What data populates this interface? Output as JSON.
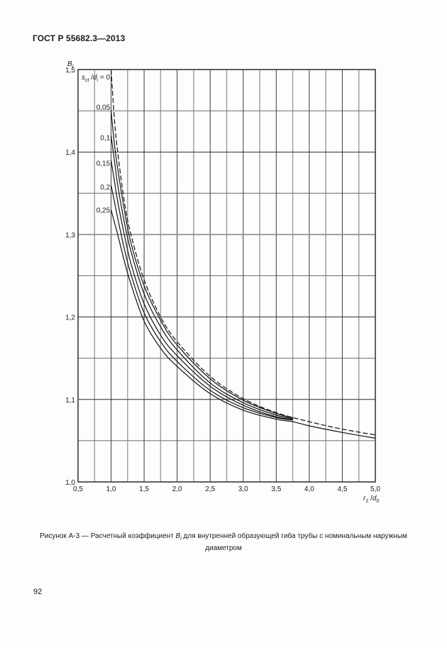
{
  "header": {
    "title": "ГОСТ Р 55682.3—2013"
  },
  "page": {
    "number": "92"
  },
  "caption": {
    "prefix": "Рисунок А-3 — Расчетный коэффициент ",
    "symbol": "B",
    "symbol_sub": "i",
    "suffix": " для внутренней образующей гиба трубы с номинальным наружным",
    "line2": "диаметром"
  },
  "chart_data": {
    "type": "line",
    "title": "",
    "xlabel": "r2/d0",
    "ylabel": "Bi",
    "xlim": [
      0.5,
      5.0
    ],
    "ylim": [
      1.0,
      1.5
    ],
    "x_ticks": [
      "0,5",
      "1,0",
      "1,5",
      "2,0",
      "2,5",
      "3,0",
      "3,5",
      "4,0",
      "4,5",
      "5,0"
    ],
    "y_ticks": [
      "1,0",
      "1,1",
      "1,2",
      "1,3",
      "1,4",
      "1,5"
    ],
    "x_minor_grid": [
      0.75,
      1.25,
      1.75,
      2.25,
      2.75,
      3.25,
      3.75,
      4.25,
      4.75
    ],
    "y_minor_grid": [
      1.05,
      1.15,
      1.25,
      1.35,
      1.45
    ],
    "grid": true,
    "legend_title": "s_ct / d_i =",
    "series": [
      {
        "name": "0",
        "style": "dashed",
        "x": [
          1.0,
          1.05,
          1.1,
          1.2,
          1.3,
          1.5,
          1.75,
          2.0,
          2.5,
          3.0,
          3.5,
          4.0,
          4.5,
          5.0
        ],
        "y": [
          1.5,
          1.44,
          1.4,
          1.34,
          1.3,
          1.245,
          1.2,
          1.17,
          1.128,
          1.101,
          1.084,
          1.073,
          1.064,
          1.057
        ]
      },
      {
        "name": "0,05",
        "style": "solid",
        "x": [
          1.0,
          1.05,
          1.1,
          1.2,
          1.3,
          1.5,
          1.75,
          2.0,
          2.5,
          3.0,
          3.5,
          3.75
        ],
        "y": [
          1.45,
          1.41,
          1.38,
          1.33,
          1.29,
          1.238,
          1.196,
          1.166,
          1.125,
          1.099,
          1.083,
          1.078
        ]
      },
      {
        "name": "0,1",
        "style": "solid",
        "x": [
          1.0,
          1.05,
          1.1,
          1.2,
          1.3,
          1.5,
          1.75,
          2.0,
          2.5,
          3.0,
          3.5,
          3.75
        ],
        "y": [
          1.42,
          1.39,
          1.36,
          1.315,
          1.28,
          1.228,
          1.188,
          1.16,
          1.12,
          1.096,
          1.081,
          1.077
        ]
      },
      {
        "name": "0,15",
        "style": "solid",
        "x": [
          1.0,
          1.05,
          1.1,
          1.2,
          1.3,
          1.5,
          1.75,
          2.0,
          2.5,
          3.0,
          3.5,
          3.75
        ],
        "y": [
          1.39,
          1.365,
          1.34,
          1.3,
          1.265,
          1.216,
          1.178,
          1.153,
          1.116,
          1.093,
          1.079,
          1.076
        ]
      },
      {
        "name": "0,2",
        "style": "solid",
        "x": [
          1.0,
          1.05,
          1.1,
          1.2,
          1.3,
          1.5,
          1.75,
          2.0,
          2.5,
          3.0,
          3.5,
          3.75
        ],
        "y": [
          1.36,
          1.34,
          1.32,
          1.283,
          1.252,
          1.205,
          1.17,
          1.146,
          1.111,
          1.09,
          1.078,
          1.075
        ]
      },
      {
        "name": "0,25",
        "style": "solid",
        "x": [
          1.0,
          1.05,
          1.1,
          1.2,
          1.3,
          1.5,
          1.75,
          2.0,
          2.5,
          3.0,
          3.5,
          3.75,
          4.0,
          4.5,
          5.0
        ],
        "y": [
          1.33,
          1.315,
          1.3,
          1.268,
          1.24,
          1.195,
          1.162,
          1.14,
          1.107,
          1.087,
          1.076,
          1.073,
          1.068,
          1.06,
          1.053
        ]
      }
    ],
    "curve_labels": [
      {
        "text": "0,05",
        "x": 0.985,
        "y": 1.455
      },
      {
        "text": "0,1",
        "x": 0.985,
        "y": 1.418
      },
      {
        "text": "0,15",
        "x": 0.985,
        "y": 1.387
      },
      {
        "text": "0,2",
        "x": 0.985,
        "y": 1.358
      },
      {
        "text": "0,25",
        "x": 0.985,
        "y": 1.33
      }
    ]
  }
}
